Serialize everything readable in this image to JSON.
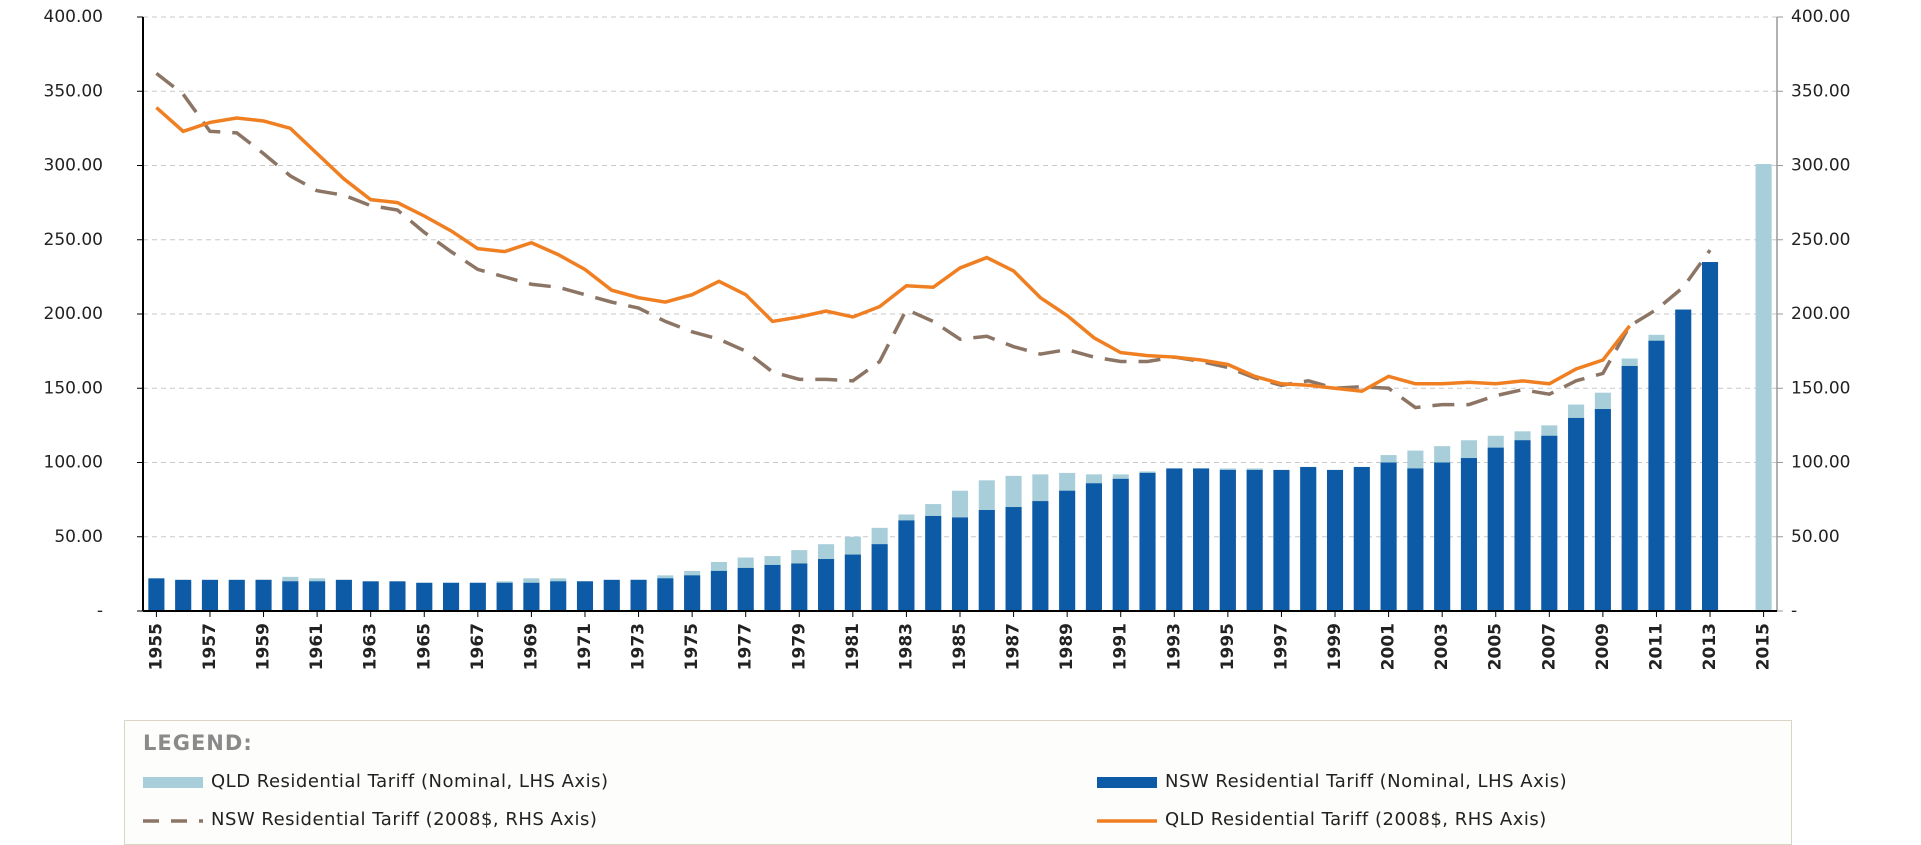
{
  "chart_data": {
    "type": "combo",
    "legend_title": "LEGEND:",
    "x": [
      1955,
      1956,
      1957,
      1958,
      1959,
      1960,
      1961,
      1962,
      1963,
      1964,
      1965,
      1966,
      1967,
      1968,
      1969,
      1970,
      1971,
      1972,
      1973,
      1974,
      1975,
      1976,
      1977,
      1978,
      1979,
      1980,
      1981,
      1982,
      1983,
      1984,
      1985,
      1986,
      1987,
      1988,
      1989,
      1990,
      1991,
      1992,
      1993,
      1994,
      1995,
      1996,
      1997,
      1998,
      1999,
      2000,
      2001,
      2002,
      2003,
      2004,
      2005,
      2006,
      2007,
      2008,
      2009,
      2010,
      2011,
      2012,
      2013,
      2014,
      2015
    ],
    "xlim": [
      1954.5,
      2015.5
    ],
    "xticks": [
      1955,
      1957,
      1959,
      1961,
      1963,
      1965,
      1967,
      1969,
      1971,
      1973,
      1975,
      1977,
      1979,
      1981,
      1983,
      1985,
      1987,
      1989,
      1991,
      1993,
      1995,
      1997,
      1999,
      2001,
      2003,
      2005,
      2007,
      2009,
      2011,
      2013,
      2015
    ],
    "ylim": [
      0,
      400
    ],
    "yticks": [
      {
        "value": 0,
        "label": "-"
      },
      {
        "value": 50,
        "label": "50.00"
      },
      {
        "value": 100,
        "label": "100.00"
      },
      {
        "value": 150,
        "label": "150.00"
      },
      {
        "value": 200,
        "label": "200.00"
      },
      {
        "value": 250,
        "label": "250.00"
      },
      {
        "value": 300,
        "label": "300.00"
      },
      {
        "value": 350,
        "label": "350.00"
      },
      {
        "value": 400,
        "label": "400.00"
      }
    ],
    "y2lim": [
      0,
      400
    ],
    "y2ticks": [
      {
        "value": 0,
        "label": "-"
      },
      {
        "value": 50,
        "label": "50.00"
      },
      {
        "value": 100,
        "label": "100.00"
      },
      {
        "value": 150,
        "label": "150.00"
      },
      {
        "value": 200,
        "label": "200.00"
      },
      {
        "value": 250,
        "label": "250.00"
      },
      {
        "value": 300,
        "label": "300.00"
      },
      {
        "value": 350,
        "label": "350.00"
      },
      {
        "value": 400,
        "label": "400.00"
      }
    ],
    "grid": true,
    "series": [
      {
        "name": "QLD Residential Tariff (Nominal, LHS Axis)",
        "type": "bar",
        "color": "#a8cfd9",
        "values": [
          20,
          20,
          20,
          20,
          21,
          23,
          22,
          20,
          19,
          19,
          19,
          19,
          19,
          20,
          22,
          22,
          20,
          20,
          21,
          24,
          27,
          33,
          36,
          37,
          41,
          45,
          50,
          56,
          65,
          72,
          81,
          88,
          91,
          92,
          93,
          92,
          92,
          94,
          96,
          96,
          96,
          96,
          95,
          96,
          95,
          96,
          105,
          108,
          111,
          115,
          118,
          121,
          125,
          139,
          147,
          170,
          186,
          null,
          null,
          null,
          301
        ]
      },
      {
        "name": "NSW Residential Tariff (Nominal, LHS Axis)",
        "type": "bar",
        "color": "#0d5aa7",
        "values": [
          22,
          21,
          21,
          21,
          21,
          20,
          20,
          21,
          20,
          20,
          19,
          19,
          19,
          19,
          19,
          20,
          20,
          21,
          21,
          22,
          24,
          27,
          29,
          31,
          32,
          35,
          38,
          45,
          61,
          64,
          63,
          68,
          70,
          74,
          81,
          86,
          89,
          93,
          96,
          96,
          95,
          95,
          95,
          97,
          95,
          97,
          100,
          96,
          100,
          103,
          110,
          115,
          118,
          130,
          136,
          165,
          182,
          203,
          235,
          null,
          null
        ]
      },
      {
        "name": "NSW Residential Tariff (2008$, RHS Axis)",
        "type": "line",
        "dashed": true,
        "axis": "y2",
        "color": "#8c7565",
        "values": [
          362,
          348,
          323,
          322,
          308,
          293,
          283,
          280,
          273,
          270,
          255,
          242,
          230,
          225,
          220,
          218,
          213,
          208,
          204,
          195,
          188,
          183,
          175,
          161,
          156,
          156,
          155,
          168,
          203,
          195,
          183,
          185,
          178,
          173,
          176,
          171,
          168,
          168,
          171,
          168,
          164,
          157,
          152,
          155,
          150,
          151,
          150,
          137,
          139,
          139,
          145,
          149,
          146,
          155,
          160,
          192,
          203,
          218,
          243,
          null,
          null
        ]
      },
      {
        "name": "QLD Residential Tariff (2008$, RHS Axis)",
        "type": "line",
        "dashed": false,
        "axis": "y2",
        "color": "#f07f22",
        "values": [
          339,
          323,
          329,
          332,
          330,
          325,
          308,
          291,
          277,
          275,
          266,
          256,
          244,
          242,
          248,
          240,
          230,
          216,
          211,
          208,
          213,
          222,
          213,
          195,
          198,
          202,
          198,
          205,
          219,
          218,
          231,
          238,
          229,
          211,
          199,
          184,
          174,
          172,
          171,
          169,
          166,
          158,
          153,
          152,
          150,
          148,
          158,
          153,
          153,
          154,
          153,
          155,
          153,
          163,
          169,
          192,
          null,
          null,
          null,
          null,
          null
        ]
      }
    ]
  }
}
